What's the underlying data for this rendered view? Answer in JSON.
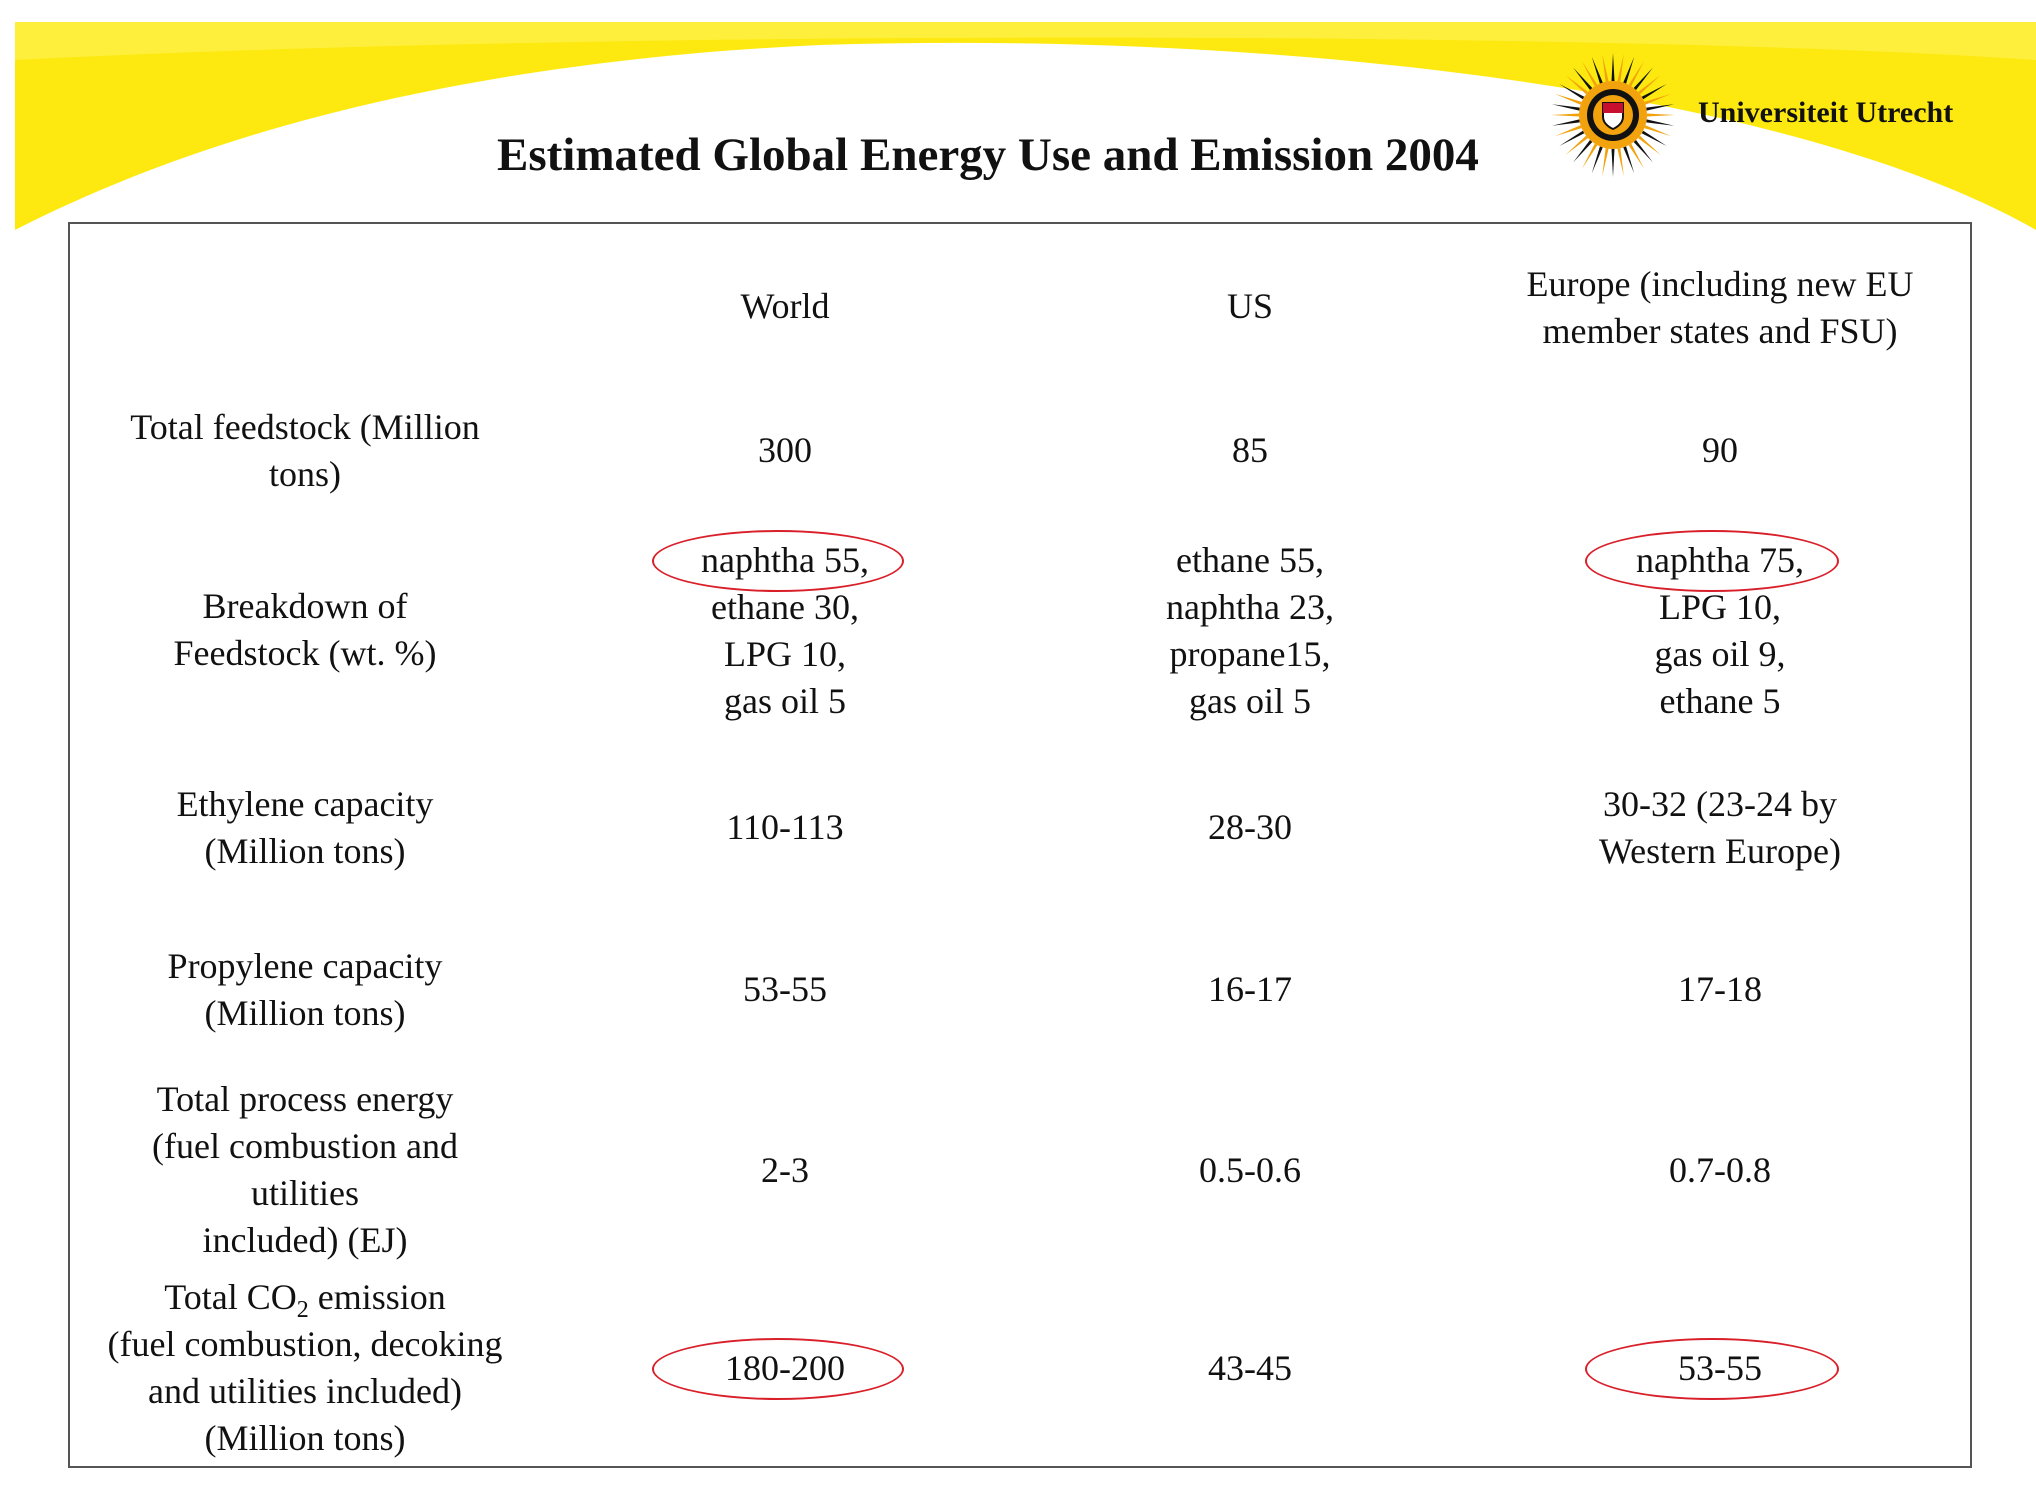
{
  "title": "Estimated Global Energy Use and Emission 2004",
  "institution": "Universiteit Utrecht",
  "colors": {
    "banner": "#fde90f",
    "highlight_ring": "#d9202a",
    "logo_orange": "#f2a20d"
  },
  "table": {
    "headers": [
      "World",
      "US",
      "Europe (including new EU\nmember states and FSU)"
    ],
    "rows": [
      {
        "label": "Total feedstock (Million\ntons)",
        "values": [
          "300",
          "85",
          "90"
        ]
      },
      {
        "label": "Breakdown of\nFeedstock (wt. %)",
        "values": [
          "naphtha 55,\nethane 30,\nLPG 10,\ngas oil 5",
          "ethane 55,\nnaphtha 23,\npropane15,\ngas oil 5",
          "naphtha 75,\nLPG 10,\ngas oil 9,\nethane 5"
        ]
      },
      {
        "label": "Ethylene capacity\n(Million tons)",
        "values": [
          "110-113",
          "28-30",
          "30-32 (23-24 by\nWestern Europe)"
        ]
      },
      {
        "label": "Propylene capacity\n(Million tons)",
        "values": [
          "53-55",
          "16-17",
          "17-18"
        ]
      },
      {
        "label": "Total process energy\n(fuel combustion and\nutilities\nincluded) (EJ)",
        "values": [
          "2-3",
          "0.5-0.6",
          "0.7-0.8"
        ]
      },
      {
        "label_line1_pre": "Total CO",
        "label_line1_sub": "2",
        "label_line1_post": " emission",
        "label_rest": "(fuel combustion, decoking\nand utilities included)\n(Million tons)",
        "values": [
          "180-200",
          "43-45",
          "53-55"
        ]
      }
    ]
  }
}
